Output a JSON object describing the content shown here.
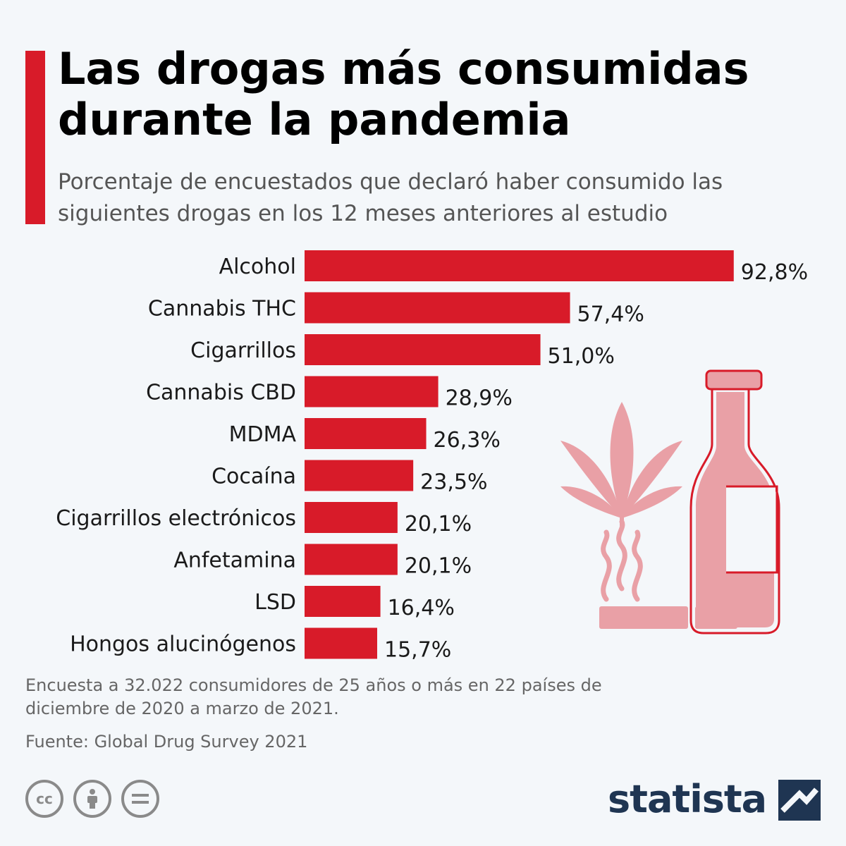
{
  "header": {
    "title": "Las drogas más consumidas durante la pandemia",
    "subtitle": "Porcentaje de encuestados que declaró haber consumido las siguientes drogas en los 12 meses anteriores al estudio"
  },
  "chart_data": {
    "type": "bar",
    "orientation": "horizontal",
    "categories": [
      "Alcohol",
      "Cannabis THC",
      "Cigarrillos",
      "Cannabis CBD",
      "MDMA",
      "Cocaína",
      "Cigarrillos electrónicos",
      "Anfetamina",
      "LSD",
      "Hongos alucinógenos"
    ],
    "values": [
      92.8,
      57.4,
      51.0,
      28.9,
      26.3,
      23.5,
      20.1,
      20.1,
      16.4,
      15.7
    ],
    "value_labels": [
      "92,8%",
      "57,4%",
      "51,0%",
      "28,9%",
      "26,3%",
      "23,5%",
      "20,1%",
      "20,1%",
      "16,4%",
      "15,7%"
    ],
    "xlim": [
      0,
      100
    ],
    "grid": false,
    "bar_color": "#d81b29"
  },
  "footer": {
    "note": "Encuesta a 32.022 consumidores de 25 años o más en 22 países de diciembre de 2020 a marzo de 2021.",
    "source": "Fuente: Global Drug Survey 2021",
    "brand": "statista"
  },
  "icons": {
    "license": [
      "cc-icon",
      "attribution-icon",
      "no-derivatives-icon"
    ],
    "illustration": [
      "cannabis-leaf-icon",
      "cigarette-icon",
      "bottle-icon"
    ],
    "brand_mark": "statista-logo-icon"
  },
  "colors": {
    "accent": "#d81b29",
    "illustration": "#e9a0a6",
    "brand": "#1f3552",
    "background": "#f4f7fa"
  }
}
